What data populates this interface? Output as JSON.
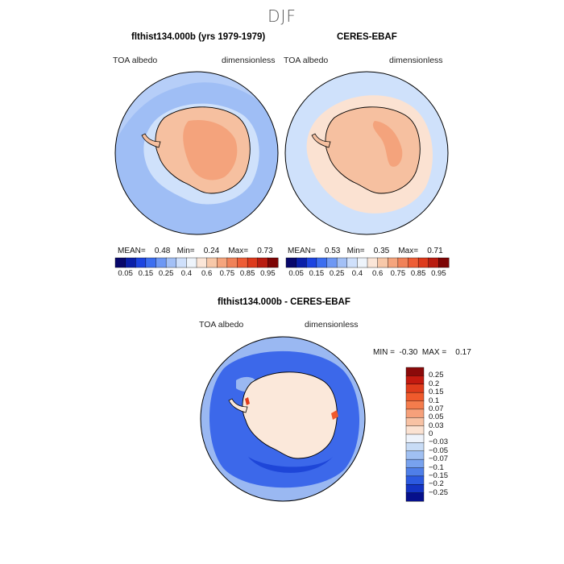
{
  "title": "DJF",
  "panels": [
    {
      "title": "flthist134.000b (yrs 1979-1979)",
      "left_label": "TOA albedo",
      "right_label": "dimensionless",
      "stats": {
        "mean_label": "MEAN=",
        "mean": "0.48",
        "min_label": "Min=",
        "min": "0.24",
        "max_label": "Max=",
        "max": "0.73"
      }
    },
    {
      "title": "CERES-EBAF",
      "left_label": "TOA albedo",
      "right_label": "dimensionless",
      "stats": {
        "mean_label": "MEAN=",
        "mean": "0.53",
        "min_label": "Min=",
        "min": "0.35",
        "max_label": "Max=",
        "max": "0.71"
      }
    }
  ],
  "top_colorbar": {
    "labels": [
      "0.05",
      "0.15",
      "0.25",
      "0.4",
      "0.6",
      "0.75",
      "0.85",
      "0.95"
    ],
    "colors": [
      "#08086b",
      "#0a1fa8",
      "#1c44e0",
      "#3c6ef0",
      "#6e98f4",
      "#a3c0f6",
      "#cfe0fb",
      "#eef4fb",
      "#fbe6d8",
      "#f7c8a9",
      "#f5a57e",
      "#f08259",
      "#ee5d36",
      "#dd3a1c",
      "#b91c10",
      "#7d0505"
    ]
  },
  "diff_panel": {
    "title": "flthist134.000b - CERES-EBAF",
    "left_label": "TOA albedo",
    "right_label": "dimensionless",
    "stats": {
      "min_label": "MIN =",
      "min": "-0.30",
      "max_label": "MAX =",
      "max": "0.17"
    }
  },
  "diff_colorbar": {
    "labels": [
      "0.25",
      "0.2",
      "0.15",
      "0.1",
      "0.07",
      "0.05",
      "0.03",
      "0",
      "−0.03",
      "−0.05",
      "−0.07",
      "−0.1",
      "−0.15",
      "−0.2",
      "−0.25"
    ],
    "colors": [
      "#8b0a0a",
      "#c41a10",
      "#e03c1c",
      "#f05a2c",
      "#f47c4c",
      "#f6a07a",
      "#f8c2a4",
      "#fbe2d2",
      "#eef3fb",
      "#c8dcf6",
      "#a0c0f2",
      "#78a2ee",
      "#4f7fe8",
      "#2c5ae0",
      "#1434c4",
      "#06108c"
    ]
  },
  "map_colors": {
    "ocean_model": "#9fbef5",
    "ocean_obs": "#cfe1fb",
    "ice_edge": "#fbe2d2",
    "land_light": "#f6c0a0",
    "land_dark": "#f4a37c",
    "diff_ocean": "#3c68ea",
    "diff_ocean_deep": "#1e46d8",
    "diff_outer": "#9ab8f2",
    "diff_land": "#fbe8da"
  }
}
